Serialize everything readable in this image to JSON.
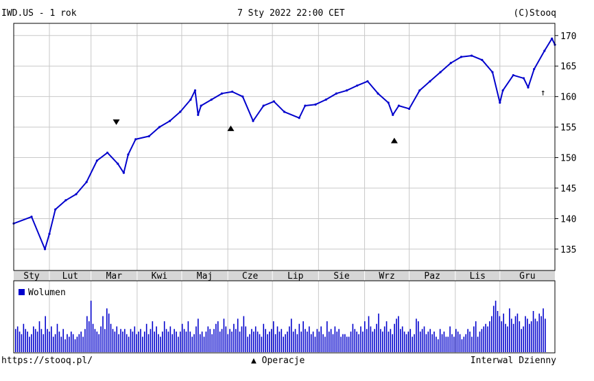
{
  "header": {
    "symbol_period": "IWD.US - 1 rok",
    "datetime": "7 Sty 2022 22:00 CET",
    "copyright": "(C)Stooq"
  },
  "footer": {
    "url": "https://stooq.pl/",
    "operations_label": "Operacje",
    "interval": "Interwal Dzienny"
  },
  "colors": {
    "series": "#0000cc",
    "grid": "#c8c8c8",
    "month_band": "#d6d6d6"
  },
  "chart_data": [
    {
      "type": "line",
      "title": "IWD.US - 1 rok",
      "months": [
        "Sty",
        "Lut",
        "Mar",
        "Kwi",
        "Maj",
        "Cze",
        "Lip",
        "Sie",
        "Wrz",
        "Paz",
        "Lis",
        "Gru"
      ],
      "x": [
        "2021-01-08",
        "2021-01-20",
        "2021-01-29",
        "2021-02-01",
        "2021-02-05",
        "2021-02-12",
        "2021-02-19",
        "2021-02-26",
        "2021-03-05",
        "2021-03-12",
        "2021-03-19",
        "2021-03-23",
        "2021-03-26",
        "2021-03-31",
        "2021-04-09",
        "2021-04-16",
        "2021-04-23",
        "2021-04-30",
        "2021-05-07",
        "2021-05-10",
        "2021-05-12",
        "2021-05-14",
        "2021-05-21",
        "2021-05-28",
        "2021-06-04",
        "2021-06-11",
        "2021-06-18",
        "2021-06-25",
        "2021-07-02",
        "2021-07-09",
        "2021-07-19",
        "2021-07-23",
        "2021-07-30",
        "2021-08-06",
        "2021-08-13",
        "2021-08-20",
        "2021-08-27",
        "2021-09-03",
        "2021-09-10",
        "2021-09-17",
        "2021-09-20",
        "2021-09-24",
        "2021-10-01",
        "2021-10-08",
        "2021-10-15",
        "2021-10-22",
        "2021-10-29",
        "2021-11-05",
        "2021-11-12",
        "2021-11-19",
        "2021-11-26",
        "2021-12-01",
        "2021-12-03",
        "2021-12-10",
        "2021-12-17",
        "2021-12-20",
        "2021-12-24",
        "2021-12-31",
        "2022-01-05",
        "2022-01-07"
      ],
      "y": [
        139.2,
        140.3,
        135.0,
        137.5,
        141.5,
        143.0,
        144.0,
        146.0,
        149.5,
        150.8,
        149.0,
        147.5,
        150.5,
        153.0,
        153.5,
        155.0,
        156.0,
        157.5,
        159.5,
        161.0,
        157.0,
        158.5,
        159.5,
        160.5,
        160.8,
        160.0,
        156.0,
        158.5,
        159.2,
        157.5,
        156.5,
        158.5,
        158.7,
        159.5,
        160.5,
        161.0,
        161.8,
        162.5,
        160.5,
        159.0,
        157.0,
        158.5,
        158.0,
        161.0,
        162.5,
        164.0,
        165.5,
        166.5,
        166.7,
        166.0,
        164.0,
        159.0,
        161.0,
        163.5,
        163.0,
        161.5,
        164.5,
        167.5,
        169.5,
        168.5
      ],
      "ylim": [
        131.5,
        172
      ],
      "y_ticks": [
        135,
        140,
        145,
        150,
        155,
        160,
        165,
        170
      ],
      "operations": [
        {
          "date": "2021-03-18",
          "direction": "down"
        },
        {
          "date": "2021-06-03",
          "direction": "up"
        },
        {
          "date": "2021-09-21",
          "direction": "up"
        }
      ],
      "annotations": [
        {
          "date": "2021-12-30",
          "text": "↑"
        }
      ]
    },
    {
      "type": "bar",
      "title": "Wolumen",
      "legend": [
        "Wolumen"
      ],
      "values": [
        9,
        10,
        8,
        7,
        11,
        9,
        8,
        6,
        7,
        10,
        9,
        8,
        12,
        9,
        7,
        14,
        9,
        8,
        10,
        6,
        7,
        11,
        8,
        6,
        9,
        5,
        7,
        6,
        8,
        7,
        5,
        6,
        7,
        8,
        6,
        9,
        14,
        12,
        20,
        11,
        9,
        8,
        7,
        10,
        14,
        9,
        17,
        15,
        11,
        9,
        8,
        10,
        7,
        9,
        8,
        9,
        7,
        6,
        9,
        8,
        10,
        7,
        8,
        9,
        6,
        8,
        11,
        7,
        9,
        12,
        8,
        10,
        7,
        6,
        8,
        12,
        9,
        8,
        10,
        7,
        9,
        8,
        6,
        8,
        11,
        9,
        8,
        12,
        8,
        6,
        7,
        10,
        13,
        7,
        8,
        6,
        8,
        10,
        9,
        7,
        9,
        11,
        12,
        8,
        9,
        13,
        10,
        7,
        9,
        8,
        11,
        9,
        13,
        8,
        10,
        14,
        10,
        6,
        7,
        9,
        8,
        10,
        8,
        7,
        6,
        11,
        9,
        7,
        8,
        9,
        12,
        7,
        10,
        8,
        9,
        6,
        7,
        8,
        10,
        13,
        8,
        9,
        7,
        11,
        8,
        12,
        9,
        8,
        10,
        7,
        8,
        6,
        9,
        8,
        10,
        7,
        6,
        12,
        8,
        9,
        7,
        10,
        8,
        9,
        6,
        7,
        7,
        6,
        6,
        8,
        11,
        9,
        8,
        7,
        10,
        8,
        12,
        9,
        14,
        10,
        8,
        9,
        11,
        15,
        9,
        8,
        10,
        12,
        8,
        9,
        7,
        11,
        13,
        14,
        9,
        10,
        8,
        7,
        8,
        9,
        6,
        7,
        13,
        12,
        8,
        9,
        10,
        7,
        8,
        9,
        7,
        8,
        6,
        5,
        9,
        7,
        8,
        6,
        6,
        10,
        7,
        6,
        9,
        8,
        7,
        5,
        6,
        7,
        9,
        8,
        6,
        10,
        12,
        6,
        8,
        9,
        10,
        11,
        10,
        12,
        14,
        18,
        20,
        16,
        14,
        12,
        15,
        11,
        10,
        17,
        13,
        11,
        14,
        15,
        12,
        9,
        10,
        14,
        13,
        11,
        12,
        16,
        13,
        12,
        15,
        14,
        17,
        13
      ]
    }
  ]
}
